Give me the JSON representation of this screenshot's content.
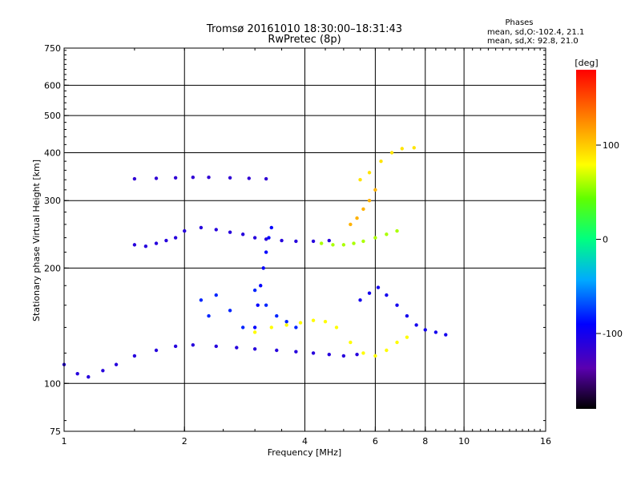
{
  "chart_data": {
    "type": "scatter",
    "title": "Tromsø 20161010 18:30:00–18:31:43",
    "subtitle": "RwPretec (8p)",
    "xlabel": "Frequency [MHz]",
    "ylabel": "Stationary phase Virtual Height [km]",
    "x_scale": "log",
    "y_scale": "log",
    "xlim": [
      1,
      16
    ],
    "ylim": [
      75,
      750
    ],
    "x_ticks": [
      1,
      2,
      4,
      6,
      8,
      10,
      16
    ],
    "y_ticks": [
      75,
      100,
      200,
      300,
      400,
      500,
      600,
      750
    ],
    "x_major_grid": [
      2,
      4,
      6,
      8,
      10
    ],
    "y_major_grid": [
      100,
      200,
      300,
      400,
      500,
      600
    ],
    "grid": true,
    "colorbar": {
      "label": "[deg]",
      "range": [
        -180,
        180
      ],
      "ticks": [
        -100,
        0,
        100
      ],
      "placement": "right"
    },
    "stats": {
      "heading": "Phases",
      "line1": "mean, sd,O:-102.4, 21.1",
      "line2": "mean, sd,X:  92.8, 21.0"
    },
    "traces": [
      {
        "id": "o-low",
        "phase": -110,
        "x": [
          1.0,
          1.08,
          1.15,
          1.25,
          1.35,
          1.5,
          1.7,
          1.9,
          2.1,
          2.4,
          2.7,
          3.0,
          3.4,
          3.8,
          4.2,
          4.6,
          5.0,
          5.4
        ],
        "y": [
          112,
          106,
          104,
          108,
          112,
          118,
          122,
          125,
          126,
          125,
          124,
          123,
          122,
          121,
          120,
          119,
          118,
          119
        ]
      },
      {
        "id": "x-low",
        "phase": 80,
        "x": [
          3.0,
          3.3,
          3.6,
          3.9,
          4.2,
          4.5,
          4.8,
          5.2,
          5.6,
          6.0,
          6.4,
          6.8,
          7.2
        ],
        "y": [
          136,
          140,
          142,
          144,
          146,
          145,
          140,
          128,
          120,
          118,
          122,
          128,
          132
        ]
      },
      {
        "id": "o-mid",
        "phase": -80,
        "x": [
          2.2,
          2.3,
          2.4,
          2.6,
          2.8,
          3.0,
          3.2,
          3.4,
          3.6,
          3.8
        ],
        "y": [
          165,
          150,
          170,
          155,
          140,
          175,
          160,
          150,
          145,
          140
        ]
      },
      {
        "id": "o-upper",
        "phase": -100,
        "x": [
          5.5,
          5.8,
          6.1,
          6.4,
          6.8,
          7.2,
          7.6,
          8.0,
          8.5,
          9.0
        ],
        "y": [
          165,
          172,
          178,
          170,
          160,
          150,
          142,
          138,
          136,
          134
        ]
      },
      {
        "id": "o-f2",
        "phase": -110,
        "x": [
          1.5,
          1.6,
          1.7,
          1.8,
          1.9,
          2.0,
          2.2,
          2.4,
          2.6,
          2.8,
          3.0,
          3.2,
          3.5,
          3.8,
          4.2,
          4.6
        ],
        "y": [
          230,
          228,
          232,
          236,
          240,
          250,
          255,
          252,
          248,
          245,
          240,
          238,
          236,
          235,
          235,
          236
        ]
      },
      {
        "id": "x-f2",
        "phase": 60,
        "x": [
          4.4,
          4.7,
          5.0,
          5.3,
          5.6,
          6.0,
          6.4,
          6.8
        ],
        "y": [
          232,
          230,
          230,
          232,
          235,
          240,
          245,
          250
        ]
      },
      {
        "id": "x-cusp",
        "phase": 110,
        "x": [
          5.2,
          5.4,
          5.6,
          5.8,
          6.0
        ],
        "y": [
          260,
          270,
          285,
          300,
          320
        ]
      },
      {
        "id": "x-high",
        "phase": 90,
        "x": [
          5.5,
          5.8,
          6.2,
          6.6,
          7.0,
          7.5
        ],
        "y": [
          340,
          355,
          380,
          400,
          410,
          412
        ]
      },
      {
        "id": "o-echo",
        "phase": -115,
        "x": [
          1.5,
          1.7,
          1.9,
          2.1,
          2.3,
          2.6,
          2.9,
          3.2
        ],
        "y": [
          342,
          343,
          344,
          345,
          345,
          344,
          343,
          342
        ]
      },
      {
        "id": "o-f2-rise",
        "phase": -90,
        "x": [
          3.0,
          3.05,
          3.1,
          3.15,
          3.2,
          3.25,
          3.3
        ],
        "y": [
          140,
          160,
          180,
          200,
          220,
          240,
          255
        ]
      }
    ]
  }
}
